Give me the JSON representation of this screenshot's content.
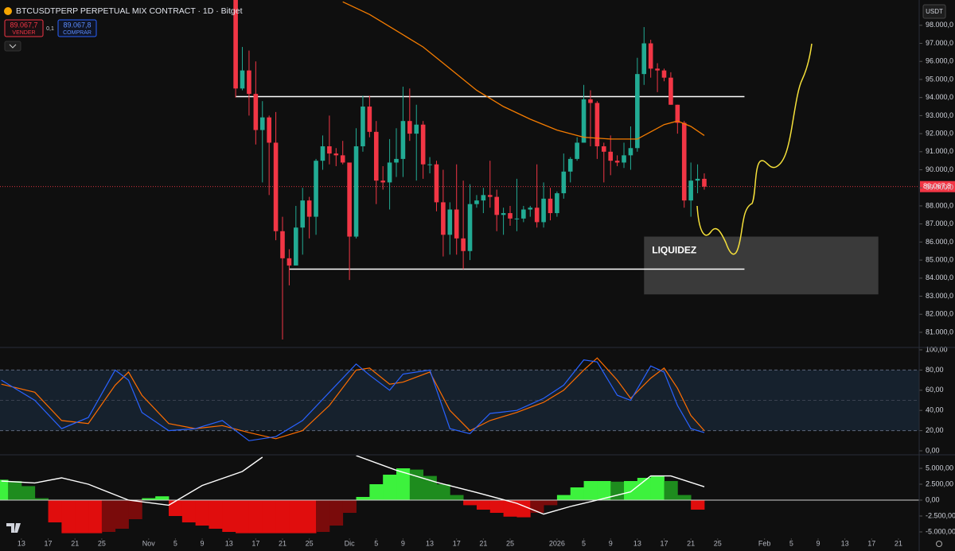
{
  "header": {
    "symbol": "BTCUSDTPERP PERPETUAL MIX CONTRACT · 1D · Bitget",
    "sell_price": "89.067,7",
    "sell_label": "VENDER",
    "spread": "0,1",
    "buy_price": "89.067,8",
    "buy_label": "COMPRAR",
    "currency": "USDT"
  },
  "chart_data": [
    {
      "type": "candlestick",
      "xlim": [
        -3.2,
        134.1
      ],
      "ylim": [
        80250,
        99400
      ],
      "yticks": [
        {
          "value": 81000,
          "label": "81.000,0"
        },
        {
          "value": 82000,
          "label": "82.000,0"
        },
        {
          "value": 83000,
          "label": "83.000,0"
        },
        {
          "value": 84000,
          "label": "84.000,0"
        },
        {
          "value": 85000,
          "label": "85.000,0"
        },
        {
          "value": 86000,
          "label": "86.000,0"
        },
        {
          "value": 87000,
          "label": "87.000,0"
        },
        {
          "value": 88000,
          "label": "88.000,0"
        },
        {
          "value": 89000,
          "label": "89.000,0"
        },
        {
          "value": 90000,
          "label": "90.000,0"
        },
        {
          "value": 91000,
          "label": "91.000,0"
        },
        {
          "value": 92000,
          "label": "92.000,0"
        },
        {
          "value": 93000,
          "label": "93.000,0"
        },
        {
          "value": 94000,
          "label": "94.000,0"
        },
        {
          "value": 95000,
          "label": "95.000,0"
        },
        {
          "value": 96000,
          "label": "96.000,0"
        },
        {
          "value": 97000,
          "label": "97.000,0"
        },
        {
          "value": 98000,
          "label": "98.000,0"
        }
      ],
      "x": [
        32,
        33,
        34,
        35,
        36,
        37,
        38,
        39,
        40,
        41,
        42,
        43,
        44,
        45,
        46,
        47,
        48,
        49,
        50,
        51,
        52,
        53,
        54,
        55,
        56,
        57,
        58,
        59,
        60,
        61,
        62,
        63,
        64,
        65,
        66,
        67,
        68,
        69,
        70,
        71,
        72,
        73,
        74,
        75,
        76,
        77,
        78,
        79,
        80,
        81,
        82,
        83,
        84,
        85,
        86,
        87,
        88,
        89,
        90,
        91,
        92,
        93,
        94,
        95,
        96,
        97,
        98,
        99,
        100,
        101,
        102
      ],
      "open": [
        99700,
        94500,
        95500,
        94200,
        92200,
        92900,
        91500,
        86600,
        85100,
        84700,
        86800,
        88300,
        87400,
        90500,
        91300,
        90900,
        90800,
        90400,
        86300,
        91300,
        93500,
        92100,
        89400,
        89300,
        90400,
        90600,
        92700,
        92000,
        92500,
        90300,
        90300,
        88200,
        86400,
        87800,
        86200,
        85500,
        88100,
        88300,
        88600,
        88500,
        87500,
        87600,
        87300,
        87300,
        87800,
        87900,
        87100,
        88400,
        87600,
        88700,
        89900,
        90600,
        91500,
        93900,
        93700,
        91300,
        91000,
        90500,
        90400,
        90800,
        91200,
        95300,
        97000,
        95600,
        95500,
        95100,
        93600,
        92600,
        88300,
        89400,
        89500
      ],
      "high": [
        99900,
        96800,
        96600,
        96000,
        93800,
        93000,
        93200,
        87400,
        85600,
        88000,
        89000,
        88500,
        90600,
        91900,
        93000,
        91200,
        91600,
        90400,
        92300,
        94100,
        94100,
        92700,
        90200,
        91700,
        92300,
        94600,
        94500,
        93600,
        92700,
        90700,
        90500,
        90000,
        88200,
        90300,
        89400,
        89200,
        88600,
        89000,
        90500,
        88900,
        87900,
        88000,
        89500,
        88000,
        88000,
        90300,
        89300,
        89000,
        88800,
        90900,
        90700,
        91800,
        94700,
        94400,
        93800,
        91500,
        91900,
        90800,
        91500,
        92400,
        96200,
        97900,
        97200,
        95900,
        95600,
        95400,
        93600,
        92700,
        90400,
        90300,
        89800
      ],
      "low": [
        94000,
        94400,
        93000,
        91400,
        89300,
        88600,
        86100,
        80600,
        83600,
        84700,
        85300,
        86200,
        86400,
        90000,
        90300,
        90200,
        90300,
        83900,
        86200,
        91000,
        91800,
        88100,
        88900,
        87800,
        89600,
        89600,
        91600,
        89400,
        89500,
        89800,
        87700,
        85200,
        85300,
        85300,
        84500,
        85000,
        87900,
        87600,
        87900,
        86600,
        86400,
        86900,
        86600,
        87100,
        87400,
        86800,
        86800,
        87200,
        87400,
        88400,
        89300,
        90500,
        91500,
        91300,
        90600,
        89300,
        89700,
        90200,
        90100,
        90000,
        91000,
        94700,
        95100,
        94300,
        94900,
        93600,
        92000,
        87900,
        87400,
        88700,
        88900
      ],
      "close": [
        94500,
        95500,
        94200,
        92200,
        92900,
        91500,
        86600,
        85100,
        84700,
        86800,
        88300,
        87400,
        90500,
        91300,
        90900,
        90800,
        90400,
        86300,
        91300,
        93500,
        92100,
        89400,
        89300,
        90400,
        90600,
        92700,
        92000,
        92500,
        90300,
        90300,
        88200,
        86400,
        87800,
        86200,
        85500,
        88100,
        88300,
        88600,
        88500,
        87500,
        87600,
        87300,
        87300,
        87800,
        87900,
        87100,
        88400,
        87600,
        88700,
        89900,
        90600,
        91500,
        93900,
        93700,
        91300,
        91000,
        90500,
        90400,
        90800,
        91200,
        95300,
        97000,
        95600,
        95500,
        95100,
        93600,
        92600,
        88300,
        89400,
        89500,
        89067.8
      ],
      "up_color": "#22ab94",
      "down_color": "#f23645",
      "overlays": [
        {
          "color": "#f57c00",
          "x": [
            48,
            52,
            56,
            60,
            64,
            68,
            72,
            76,
            80,
            84,
            88,
            92,
            94,
            96,
            98,
            100,
            102
          ],
          "values": [
            99300,
            98600,
            97700,
            96800,
            95600,
            94400,
            93500,
            92800,
            92200,
            91800,
            91700,
            91700,
            92100,
            92500,
            92700,
            92400,
            91900
          ]
        }
      ],
      "levels": [
        {
          "value": 94050,
          "from": 32,
          "to": 108
        },
        {
          "value": 84500,
          "from": 40,
          "to": 108
        }
      ],
      "level_color": "#ffffff",
      "zone": {
        "label": "LIQUIDEZ",
        "x": [
          93,
          128
        ],
        "y": [
          83100,
          86300
        ],
        "color": "#4a4a4a"
      },
      "last_price": {
        "value": 89067.8,
        "label": "89.067,8"
      },
      "last_color": "#f23645"
    },
    {
      "type": "line",
      "xlim": [
        -3.2,
        134.1
      ],
      "ylim": [
        0,
        100
      ],
      "yticks": [
        {
          "value": 0,
          "label": "0,00"
        },
        {
          "value": 20,
          "label": "20,00"
        },
        {
          "value": 40,
          "label": "40,00"
        },
        {
          "value": 60,
          "label": "60,00"
        },
        {
          "value": 80,
          "label": "80,00"
        },
        {
          "value": 100,
          "label": "100,00"
        }
      ],
      "band": [
        20,
        80
      ],
      "band_color": "#1a2a3a",
      "midline": 50,
      "x": [
        -3,
        2,
        6,
        10,
        14,
        16,
        18,
        22,
        26,
        30,
        34,
        38,
        42,
        46,
        50,
        52,
        55,
        57,
        61,
        64,
        67,
        70,
        74,
        78,
        81,
        84,
        86,
        89,
        91,
        94,
        96,
        98,
        100,
        102
      ],
      "series": [
        {
          "color": "#2962ff",
          "values": [
            70,
            50,
            22,
            33,
            80,
            70,
            38,
            20,
            22,
            30,
            10,
            14,
            30,
            58,
            86,
            75,
            60,
            76,
            80,
            22,
            17,
            37,
            40,
            52,
            65,
            90,
            88,
            55,
            50,
            84,
            78,
            45,
            22,
            18
          ]
        },
        {
          "color": "#ff6d00",
          "values": [
            66,
            58,
            30,
            27,
            65,
            78,
            55,
            27,
            22,
            25,
            18,
            12,
            20,
            45,
            80,
            82,
            66,
            68,
            78,
            40,
            20,
            30,
            38,
            48,
            60,
            80,
            92,
            70,
            52,
            72,
            82,
            62,
            35,
            20
          ]
        }
      ]
    },
    {
      "type": "bar",
      "xlim": [
        -3.2,
        134.1
      ],
      "ylim": [
        -7625,
        6750
      ],
      "yticks": [
        {
          "value": -5000,
          "label": "-5.000,00"
        },
        {
          "value": -2500,
          "label": "-2.500,00"
        },
        {
          "value": 0,
          "label": "0,00"
        },
        {
          "value": 2500,
          "label": "2.500,00"
        },
        {
          "value": 5000,
          "label": "5.000,00"
        }
      ],
      "x": [
        -3,
        -1,
        1,
        3,
        5,
        7,
        9,
        11,
        13,
        15,
        17,
        19,
        21,
        23,
        25,
        27,
        29,
        31,
        33,
        35,
        37,
        39,
        41,
        43,
        45,
        47,
        49,
        51,
        53,
        55,
        57,
        59,
        61,
        63,
        65,
        67,
        69,
        71,
        73,
        75,
        77,
        79,
        81,
        83,
        85,
        87,
        89,
        91,
        93,
        95,
        97,
        99,
        101
      ],
      "values": [
        3200,
        3000,
        2200,
        300,
        -3500,
        -5200,
        -5200,
        -5200,
        -5000,
        -4500,
        -3000,
        300,
        600,
        -2500,
        -3500,
        -4000,
        -4500,
        -5000,
        -5200,
        -5200,
        -5200,
        -5200,
        -5200,
        -5200,
        -5000,
        -4000,
        -2000,
        500,
        2500,
        4000,
        5000,
        4800,
        3800,
        2500,
        800,
        -800,
        -1500,
        -2000,
        -2600,
        -2700,
        -2000,
        -800,
        800,
        2000,
        3000,
        3000,
        2900,
        3000,
        3500,
        3800,
        3000,
        800,
        -1500
      ],
      "colors": {
        "up_rising": "#3df23d",
        "up_falling": "#1e8c1e",
        "down_falling": "#e00d0d",
        "down_rising": "#7a0b0b"
      },
      "line": {
        "color": "#ffffff",
        "x": [
          -3,
          2,
          6,
          10,
          16,
          22,
          27,
          33,
          36,
          43,
          50,
          56,
          62,
          68,
          74,
          78,
          82,
          86,
          91,
          94,
          97,
          102
        ],
        "values": [
          3000,
          2700,
          3500,
          2500,
          0,
          -800,
          2300,
          4500,
          6750,
          null,
          7000,
          4700,
          2800,
          1200,
          -500,
          -2200,
          -1000,
          0,
          1300,
          3800,
          3800,
          2100
        ]
      },
      "xticks": [
        {
          "value": 0,
          "label": "13"
        },
        {
          "value": 4,
          "label": "17"
        },
        {
          "value": 8,
          "label": "21"
        },
        {
          "value": 12,
          "label": "25"
        },
        {
          "value": 19,
          "label": "Nov"
        },
        {
          "value": 23,
          "label": "5"
        },
        {
          "value": 27,
          "label": "9"
        },
        {
          "value": 31,
          "label": "13"
        },
        {
          "value": 35,
          "label": "17"
        },
        {
          "value": 39,
          "label": "21"
        },
        {
          "value": 43,
          "label": "25"
        },
        {
          "value": 49,
          "label": "Dic"
        },
        {
          "value": 53,
          "label": "5"
        },
        {
          "value": 57,
          "label": "9"
        },
        {
          "value": 61,
          "label": "13"
        },
        {
          "value": 65,
          "label": "17"
        },
        {
          "value": 69,
          "label": "21"
        },
        {
          "value": 73,
          "label": "25"
        },
        {
          "value": 80,
          "label": "2026"
        },
        {
          "value": 84,
          "label": "5"
        },
        {
          "value": 88,
          "label": "9"
        },
        {
          "value": 92,
          "label": "13"
        },
        {
          "value": 96,
          "label": "17"
        },
        {
          "value": 100,
          "label": "21"
        },
        {
          "value": 104,
          "label": "25"
        },
        {
          "value": 111,
          "label": "Feb"
        },
        {
          "value": 115,
          "label": "5"
        },
        {
          "value": 119,
          "label": "9"
        },
        {
          "value": 123,
          "label": "13"
        },
        {
          "value": 127,
          "label": "17"
        },
        {
          "value": 131,
          "label": "21"
        }
      ]
    }
  ]
}
